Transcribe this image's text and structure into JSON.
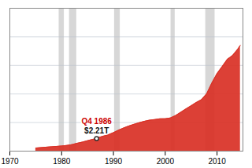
{
  "chart_data": {
    "type": "area",
    "x": [
      1975,
      1976,
      1977,
      1978,
      1979,
      1980,
      1981,
      1982,
      1983,
      1984,
      1985,
      1986,
      1986.75,
      1987,
      1988,
      1989,
      1990,
      1991,
      1992,
      1993,
      1994,
      1995,
      1996,
      1997,
      1998,
      1999,
      2000,
      2001,
      2002,
      2003,
      2004,
      2005,
      2006,
      2007,
      2008,
      2009,
      2010,
      2011,
      2012,
      2013,
      2014,
      2014.5
    ],
    "values": [
      0.533,
      0.62,
      0.699,
      0.772,
      0.827,
      0.908,
      0.994,
      1.142,
      1.377,
      1.572,
      1.823,
      2.05,
      2.21,
      2.34,
      2.602,
      2.857,
      3.233,
      3.665,
      4.064,
      4.411,
      4.693,
      4.974,
      5.225,
      5.413,
      5.526,
      5.656,
      5.674,
      5.807,
      6.228,
      6.783,
      7.379,
      7.933,
      8.507,
      9.007,
      10.025,
      11.91,
      13.562,
      14.79,
      16.066,
      16.738,
      17.824,
      18.5
    ],
    "color": "#d93025",
    "xlim": [
      1970,
      2015
    ],
    "xticks": [
      1970,
      1980,
      1990,
      2000,
      2010
    ],
    "ylim": [
      0,
      25
    ],
    "yticks": [
      5,
      10,
      15,
      20
    ],
    "grid": true,
    "tick_labels": "x",
    "recession_bands": [
      [
        1979.5,
        1980.5
      ],
      [
        1981.5,
        1982.9
      ],
      [
        1990.2,
        1991.3
      ],
      [
        2001.1,
        2001.9
      ],
      [
        2007.8,
        2009.6
      ]
    ],
    "annotations": [
      {
        "text": "Q4 1986",
        "x": 1986.75,
        "y": 2.21,
        "color": "#cc0000"
      },
      {
        "text": "$2.21T",
        "x": 1986.75,
        "y": 2.21,
        "color": "#111111"
      }
    ]
  }
}
